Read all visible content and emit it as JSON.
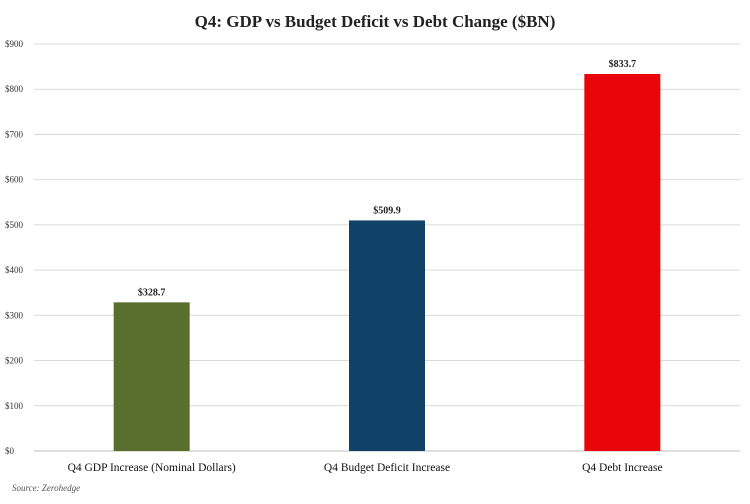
{
  "chart_data": {
    "type": "bar",
    "title": "Q4: GDP vs Budget Deficit vs Debt Change ($BN)",
    "xlabel": "",
    "ylabel": "",
    "categories": [
      "Q4 GDP Increase (Nominal Dollars)",
      "Q4 Budget Deficit Increase",
      "Q4 Debt Increase"
    ],
    "values": [
      328.7,
      509.9,
      833.7
    ],
    "value_labels": [
      "$328.7",
      "$509.9",
      "$833.7"
    ],
    "colors": [
      "#5a6e2e",
      "#0f4266",
      "#e8060a"
    ],
    "ylim": [
      0,
      900
    ],
    "yticks": [
      0,
      100,
      200,
      300,
      400,
      500,
      600,
      700,
      800,
      900
    ],
    "ytick_labels": [
      "$0",
      "$100",
      "$200",
      "$300",
      "$400",
      "$500",
      "$600",
      "$700",
      "$800",
      "$900"
    ],
    "grid": true,
    "legend": "none",
    "source": "Source: Zerohedge"
  }
}
